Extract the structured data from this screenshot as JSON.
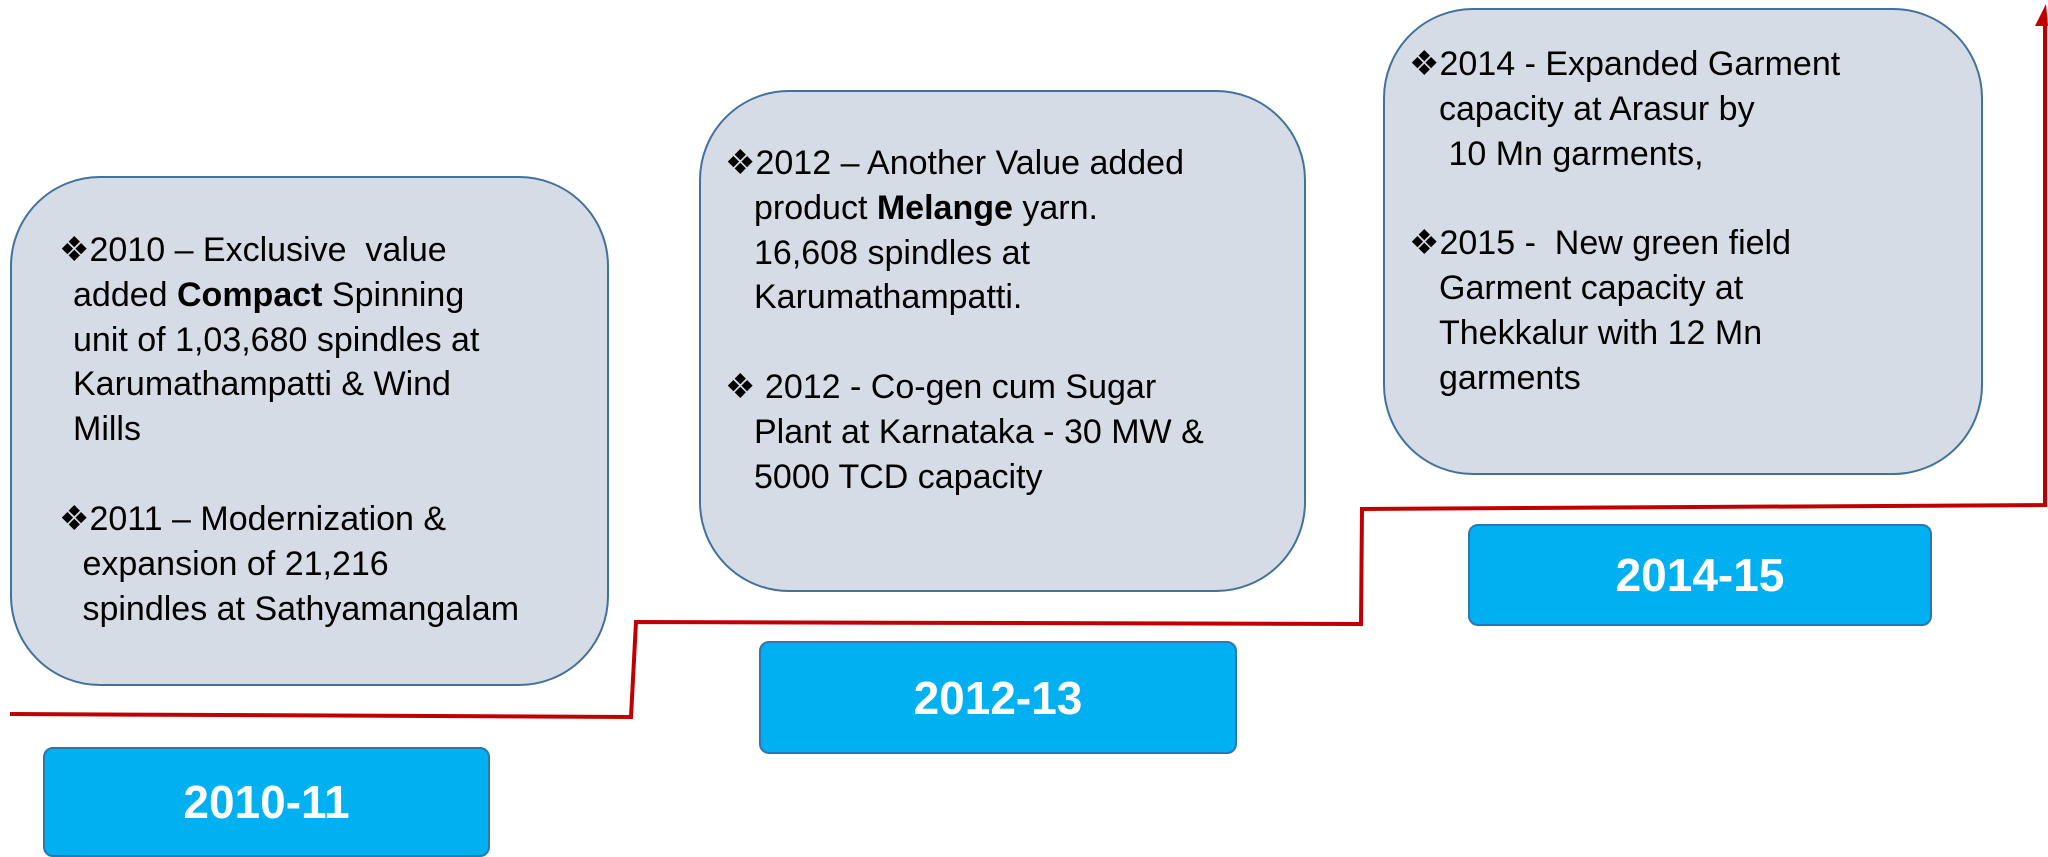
{
  "panels": [
    {
      "year": "2010-11",
      "items": [
        {
          "lines": [
            [
              {
                "text": "❖2010 – Exclusive  value"
              }
            ],
            [
              {
                "text": "added "
              },
              {
                "text": "Compact",
                "bold": true
              },
              {
                "text": " Spinning"
              }
            ],
            [
              {
                "text": "unit of 1,03,680 spindles at"
              }
            ],
            [
              {
                "text": "Karumathampatti & Wind"
              }
            ],
            [
              {
                "text": "Mills"
              }
            ]
          ]
        },
        {
          "lines": [
            [
              {
                "text": "❖2011 – Modernization &"
              }
            ],
            [
              {
                "text": " expansion of 21,216"
              }
            ],
            [
              {
                "text": " spindles at Sathyamangalam"
              }
            ]
          ]
        }
      ]
    },
    {
      "year": "2012-13",
      "items": [
        {
          "lines": [
            [
              {
                "text": "❖2012 – Another Value added"
              }
            ],
            [
              {
                "text": "product "
              },
              {
                "text": "Melange",
                "bold": true
              },
              {
                "text": " yarn."
              }
            ],
            [
              {
                "text": "16,608 spindles at"
              }
            ],
            [
              {
                "text": "Karumathampatti."
              }
            ]
          ]
        },
        {
          "lines": [
            [
              {
                "text": "❖ 2012 - Co-gen cum Sugar"
              }
            ],
            [
              {
                "text": "Plant at Karnataka - 30 MW &"
              }
            ],
            [
              {
                "text": "5000 TCD capacity"
              }
            ]
          ]
        }
      ]
    },
    {
      "year": "2014-15",
      "items": [
        {
          "lines": [
            [
              {
                "text": "❖2014 - Expanded Garment"
              }
            ],
            [
              {
                "text": "capacity at Arasur by"
              }
            ],
            [
              {
                "text": " 10 Mn garments,"
              }
            ]
          ]
        },
        {
          "lines": [
            [
              {
                "text": "❖2015 -  New green field"
              }
            ],
            [
              {
                "text": "Garment capacity at"
              }
            ],
            [
              {
                "text": "Thekkalur with 12 Mn"
              }
            ],
            [
              {
                "text": "garments"
              }
            ]
          ]
        }
      ]
    }
  ]
}
